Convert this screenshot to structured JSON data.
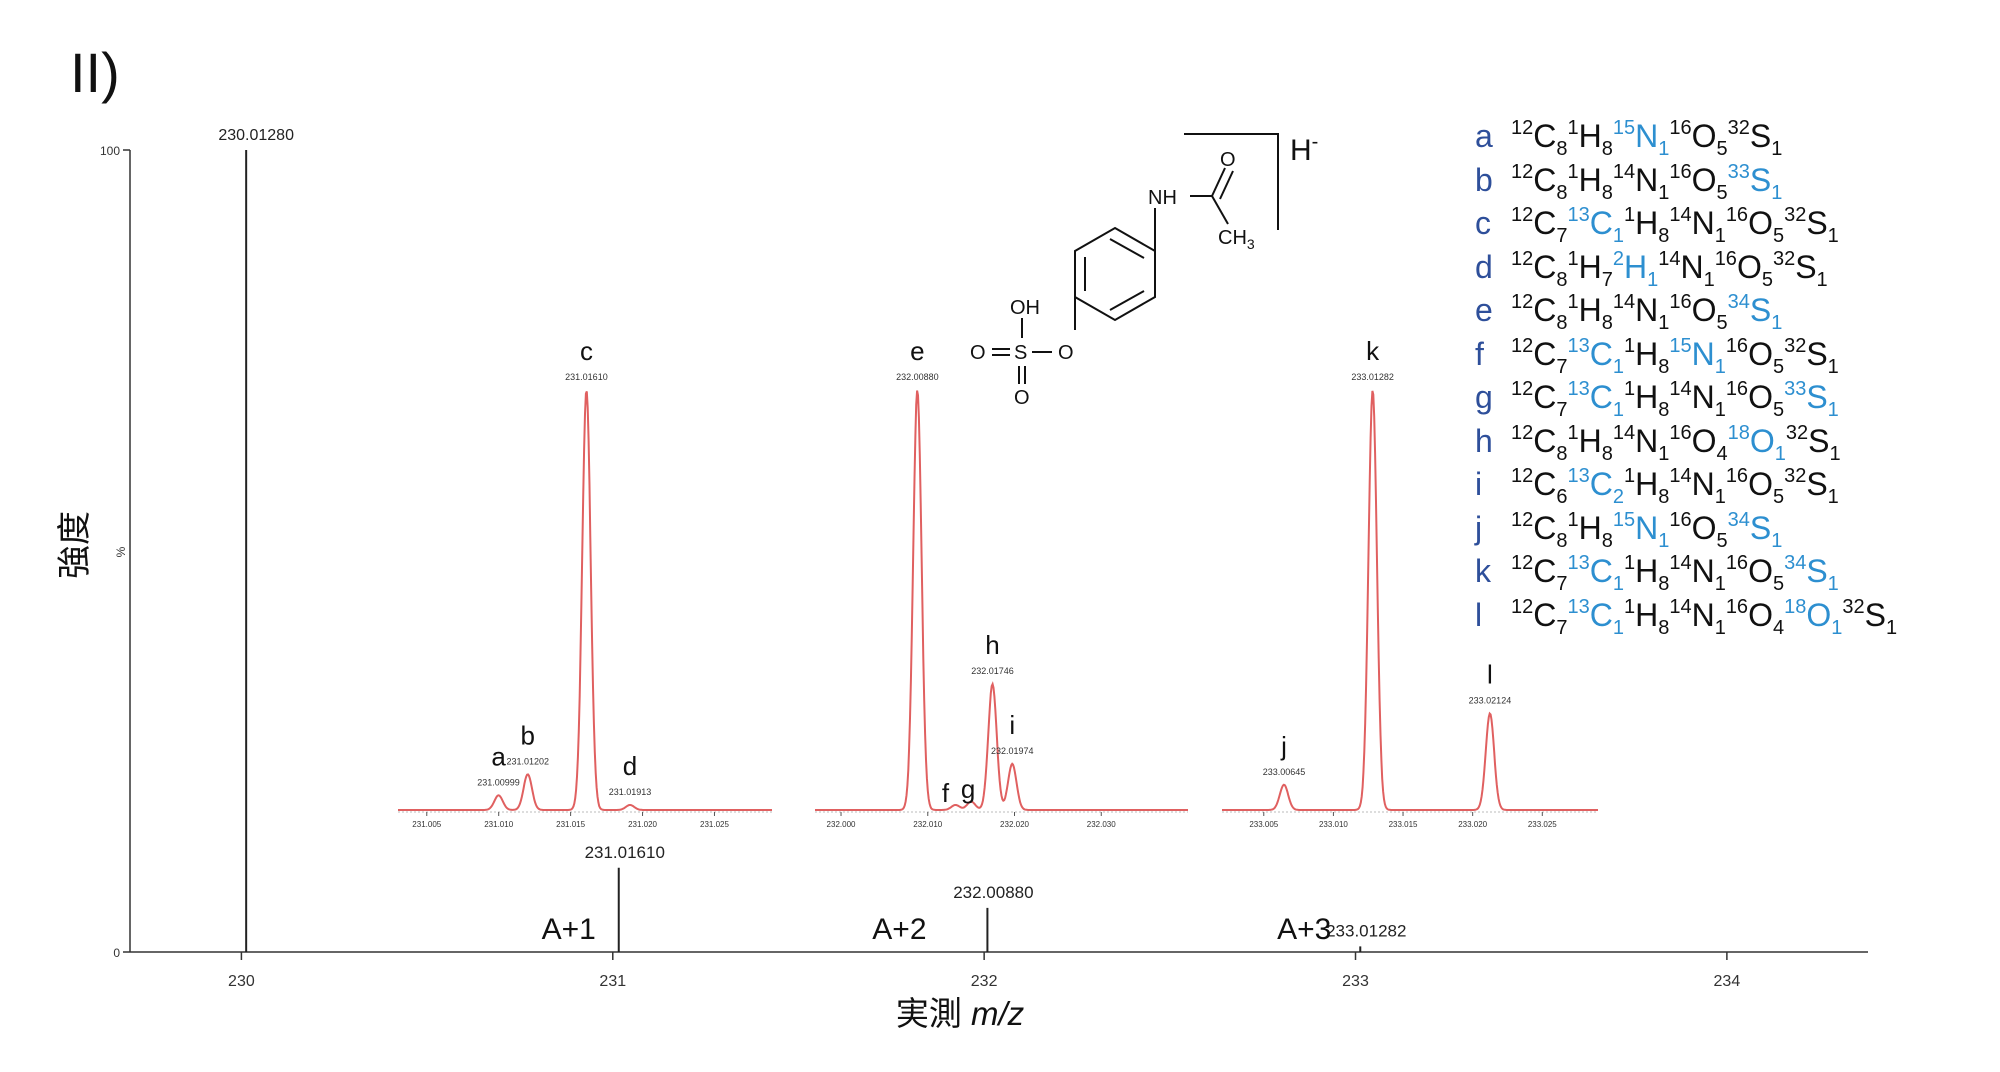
{
  "panel_label": "II)",
  "adduct_label": "H",
  "adduct_charge": "-",
  "y_axis_label": "強度",
  "x_axis_label_prefix": "実測",
  "x_axis_label_italic": "m/z",
  "colors": {
    "main_trace": "#222222",
    "inset_trace": "#e06060",
    "legend_key": "#2e4f9a",
    "isotope_highlight": "#2d8fd0"
  },
  "structure_atoms": {
    "nh": "NH",
    "o_carbonyl": "O",
    "ch3": "CH",
    "ch3_sub": "3",
    "oh": "OH",
    "o1": "O",
    "s": "S",
    "o2": "O",
    "o_bridge": "O"
  },
  "chart_data": [
    {
      "type": "line",
      "title": "",
      "xlabel": "実測 m/z",
      "ylabel": "強度",
      "y_unit_label": "%",
      "xlim": [
        229.7,
        234.38
      ],
      "ylim": [
        0,
        100
      ],
      "x_ticks": [
        230,
        231,
        232,
        233,
        234
      ],
      "y_ticks": [
        0,
        100
      ],
      "peaks": [
        {
          "mz": 230.0128,
          "intensity": 100,
          "label": "230.01280"
        },
        {
          "mz": 231.0161,
          "intensity": 10.5,
          "label": "231.01610",
          "group": "A+1"
        },
        {
          "mz": 232.0088,
          "intensity": 5.5,
          "label": "232.00880",
          "group": "A+2"
        },
        {
          "mz": 233.01282,
          "intensity": 0.7,
          "label": "233.01282",
          "group": "A+3"
        }
      ],
      "group_labels": [
        "A+1",
        "A+2",
        "A+3"
      ]
    },
    {
      "type": "line",
      "inset": "A+1",
      "xlim": [
        231.003,
        231.029
      ],
      "x_ticks": [
        "231.005",
        "231.010",
        "231.015",
        "231.020",
        "231.025"
      ],
      "peaks": [
        {
          "key": "a",
          "mz": 231.00999,
          "height": 0.035,
          "label": "231.00999"
        },
        {
          "key": "b",
          "mz": 231.01202,
          "height": 0.085,
          "label": "231.01202"
        },
        {
          "key": "c",
          "mz": 231.0161,
          "height": 1.0,
          "label": "231.01610"
        },
        {
          "key": "d",
          "mz": 231.01913,
          "height": 0.012,
          "label": "231.01913"
        }
      ]
    },
    {
      "type": "line",
      "inset": "A+2",
      "xlim": [
        231.997,
        232.04
      ],
      "x_ticks": [
        "232.000",
        "232.010",
        "232.020",
        "232.030"
      ],
      "peaks": [
        {
          "key": "e",
          "mz": 232.0088,
          "height": 1.0,
          "label": "232.00880"
        },
        {
          "key": "f",
          "mz": 232.0132,
          "height": 0.012,
          "label": ""
        },
        {
          "key": "g",
          "mz": 232.015,
          "height": 0.02,
          "label": ""
        },
        {
          "key": "h",
          "mz": 232.01746,
          "height": 0.3,
          "label": "232.01746"
        },
        {
          "key": "i",
          "mz": 232.01974,
          "height": 0.11,
          "label": "232.01974"
        }
      ]
    },
    {
      "type": "line",
      "inset": "A+3",
      "xlim": [
        233.002,
        233.029
      ],
      "x_ticks": [
        "233.005",
        "233.010",
        "233.015",
        "233.020",
        "233.025"
      ],
      "peaks": [
        {
          "key": "j",
          "mz": 233.00645,
          "height": 0.06,
          "label": "233.00645"
        },
        {
          "key": "k",
          "mz": 233.01282,
          "height": 1.0,
          "label": "233.01282"
        },
        {
          "key": "l",
          "mz": 233.02124,
          "height": 0.23,
          "label": "233.02124"
        }
      ]
    }
  ],
  "legend": [
    {
      "key": "a",
      "parts": [
        [
          "12",
          "C",
          "8",
          0
        ],
        [
          "1",
          "H",
          "8",
          0
        ],
        [
          "15",
          "N",
          "1",
          1
        ],
        [
          "16",
          "O",
          "5",
          0
        ],
        [
          "32",
          "S",
          "1",
          0
        ]
      ]
    },
    {
      "key": "b",
      "parts": [
        [
          "12",
          "C",
          "8",
          0
        ],
        [
          "1",
          "H",
          "8",
          0
        ],
        [
          "14",
          "N",
          "1",
          0
        ],
        [
          "16",
          "O",
          "5",
          0
        ],
        [
          "33",
          "S",
          "1",
          1
        ]
      ]
    },
    {
      "key": "c",
      "parts": [
        [
          "12",
          "C",
          "7",
          0
        ],
        [
          "13",
          "C",
          "1",
          1
        ],
        [
          "1",
          "H",
          "8",
          0
        ],
        [
          "14",
          "N",
          "1",
          0
        ],
        [
          "16",
          "O",
          "5",
          0
        ],
        [
          "32",
          "S",
          "1",
          0
        ]
      ]
    },
    {
      "key": "d",
      "parts": [
        [
          "12",
          "C",
          "8",
          0
        ],
        [
          "1",
          "H",
          "7",
          0
        ],
        [
          "2",
          "H",
          "1",
          1
        ],
        [
          "14",
          "N",
          "1",
          0
        ],
        [
          "16",
          "O",
          "5",
          0
        ],
        [
          "32",
          "S",
          "1",
          0
        ]
      ]
    },
    {
      "key": "e",
      "parts": [
        [
          "12",
          "C",
          "8",
          0
        ],
        [
          "1",
          "H",
          "8",
          0
        ],
        [
          "14",
          "N",
          "1",
          0
        ],
        [
          "16",
          "O",
          "5",
          0
        ],
        [
          "34",
          "S",
          "1",
          1
        ]
      ]
    },
    {
      "key": "f",
      "parts": [
        [
          "12",
          "C",
          "7",
          0
        ],
        [
          "13",
          "C",
          "1",
          1
        ],
        [
          "1",
          "H",
          "8",
          0
        ],
        [
          "15",
          "N",
          "1",
          1
        ],
        [
          "16",
          "O",
          "5",
          0
        ],
        [
          "32",
          "S",
          "1",
          0
        ]
      ]
    },
    {
      "key": "g",
      "parts": [
        [
          "12",
          "C",
          "7",
          0
        ],
        [
          "13",
          "C",
          "1",
          1
        ],
        [
          "1",
          "H",
          "8",
          0
        ],
        [
          "14",
          "N",
          "1",
          0
        ],
        [
          "16",
          "O",
          "5",
          0
        ],
        [
          "33",
          "S",
          "1",
          1
        ]
      ]
    },
    {
      "key": "h",
      "parts": [
        [
          "12",
          "C",
          "8",
          0
        ],
        [
          "1",
          "H",
          "8",
          0
        ],
        [
          "14",
          "N",
          "1",
          0
        ],
        [
          "16",
          "O",
          "4",
          0
        ],
        [
          "18",
          "O",
          "1",
          1
        ],
        [
          "32",
          "S",
          "1",
          0
        ]
      ]
    },
    {
      "key": "i",
      "parts": [
        [
          "12",
          "C",
          "6",
          0
        ],
        [
          "13",
          "C",
          "2",
          1
        ],
        [
          "1",
          "H",
          "8",
          0
        ],
        [
          "14",
          "N",
          "1",
          0
        ],
        [
          "16",
          "O",
          "5",
          0
        ],
        [
          "32",
          "S",
          "1",
          0
        ]
      ]
    },
    {
      "key": "j",
      "parts": [
        [
          "12",
          "C",
          "8",
          0
        ],
        [
          "1",
          "H",
          "8",
          0
        ],
        [
          "15",
          "N",
          "1",
          1
        ],
        [
          "16",
          "O",
          "5",
          0
        ],
        [
          "34",
          "S",
          "1",
          1
        ]
      ]
    },
    {
      "key": "k",
      "parts": [
        [
          "12",
          "C",
          "7",
          0
        ],
        [
          "13",
          "C",
          "1",
          1
        ],
        [
          "1",
          "H",
          "8",
          0
        ],
        [
          "14",
          "N",
          "1",
          0
        ],
        [
          "16",
          "O",
          "5",
          0
        ],
        [
          "34",
          "S",
          "1",
          1
        ]
      ]
    },
    {
      "key": "l",
      "parts": [
        [
          "12",
          "C",
          "7",
          0
        ],
        [
          "13",
          "C",
          "1",
          1
        ],
        [
          "1",
          "H",
          "8",
          0
        ],
        [
          "14",
          "N",
          "1",
          0
        ],
        [
          "16",
          "O",
          "4",
          0
        ],
        [
          "18",
          "O",
          "1",
          1
        ],
        [
          "32",
          "S",
          "1",
          0
        ]
      ]
    }
  ]
}
